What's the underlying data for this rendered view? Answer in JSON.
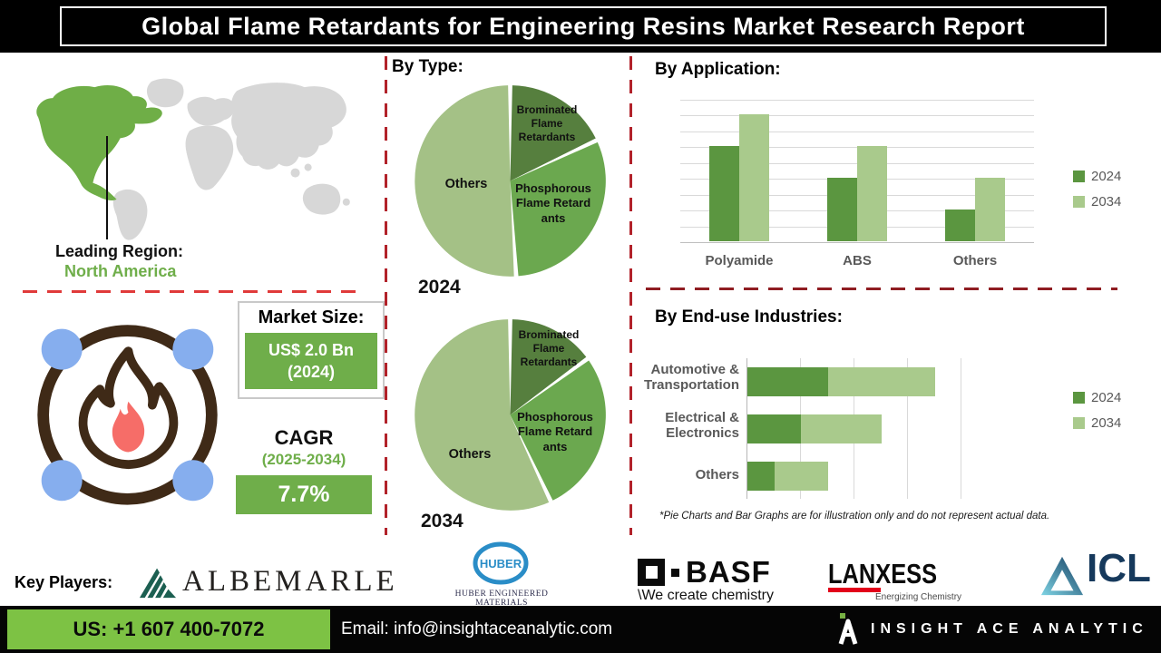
{
  "title": "Global Flame Retardants for Engineering Resins Market Research Report",
  "map": {
    "leading_label": "Leading Region:",
    "leading_value": "North America"
  },
  "metrics": {
    "market_size_label": "Market Size:",
    "market_size_value": "US$ 2.0 Bn",
    "market_size_year": "(2024)",
    "cagr_label": "CAGR",
    "cagr_period": "(2025-2034)",
    "cagr_value": "7.7%"
  },
  "sections": {
    "by_type": "By Type:",
    "by_application": "By Application:",
    "by_end_use": "By End-use Industries:"
  },
  "footnote": "*Pie Charts and Bar Graphs are for illustration only and do not represent actual data.",
  "chart_data": [
    {
      "type": "pie",
      "year": "2024",
      "title": "By Type: 2024",
      "labels": [
        "Brominated Flame Retardants",
        "Phosphorous Flame Retardants",
        "Others"
      ],
      "values": [
        18,
        31,
        51
      ],
      "colors": [
        "#567f3e",
        "#6ba84f",
        "#a4c186"
      ]
    },
    {
      "type": "pie",
      "year": "2034",
      "title": "By Type: 2034",
      "labels": [
        "Brominated Flame Retardants",
        "Phosphorous Flame Retardants",
        "Others"
      ],
      "values": [
        15,
        28,
        57
      ],
      "colors": [
        "#567f3e",
        "#6ba84f",
        "#a4c186"
      ]
    },
    {
      "type": "bar",
      "title": "By Application",
      "categories": [
        "Polyamide",
        "ABS",
        "Others"
      ],
      "series": [
        {
          "name": "2024",
          "color": "#5b9640",
          "values": [
            6,
            4,
            2
          ]
        },
        {
          "name": "2034",
          "color": "#a9ca8c",
          "values": [
            8,
            6,
            4
          ]
        }
      ],
      "ylim": [
        0,
        9
      ],
      "grid": "horizontal",
      "legend_position": "right"
    },
    {
      "type": "bar-horizontal-stacked",
      "title": "By End-use Industries",
      "categories": [
        "Automotive & Transportation",
        "Electrical & Electronics",
        "Others"
      ],
      "series": [
        {
          "name": "2024",
          "color": "#5b9640",
          "values": [
            1.5,
            1.0,
            0.5
          ]
        },
        {
          "name": "2034",
          "color": "#a9ca8c",
          "values": [
            2.0,
            1.5,
            1.0
          ]
        }
      ],
      "xlim": [
        0,
        4
      ],
      "grid": "vertical",
      "legend_position": "right"
    }
  ],
  "key_players": {
    "label": "Key Players:",
    "albemarle": "ALBEMARLE",
    "huber": "HUBER",
    "huber_sub": "HUBER ENGINEERED MATERIALS",
    "basf": "BASF",
    "basf_tagline": "\\We create chemistry",
    "lanxess": "LANXESS",
    "lanxess_tagline": "Energizing Chemistry",
    "icl": "ICL"
  },
  "footer": {
    "phone": "US: +1 607 400-7072",
    "email": "Email: info@insightaceanalytic.com",
    "brand": "INSIGHT ACE ANALYTIC"
  },
  "colors": {
    "accent_green_box": "#6fae4a",
    "map_green": "#6fae47",
    "bar_dark_green": "#5b9640",
    "bar_light_green": "#a9ca8c",
    "footer_green": "#7dc244",
    "dash_red_vertical": "#b2222a",
    "dash_red_left": "#e03a3a",
    "dash_red_right": "#8f1d22",
    "flame_brown": "#3f2a17",
    "flame_red": "#f66d68",
    "atom_blue": "#86aeee",
    "huber_blue": "#2a8dc7",
    "lanxess_red": "#e2001a",
    "icl_navy": "#16395c",
    "albemarle_green": "#1c5f51"
  }
}
